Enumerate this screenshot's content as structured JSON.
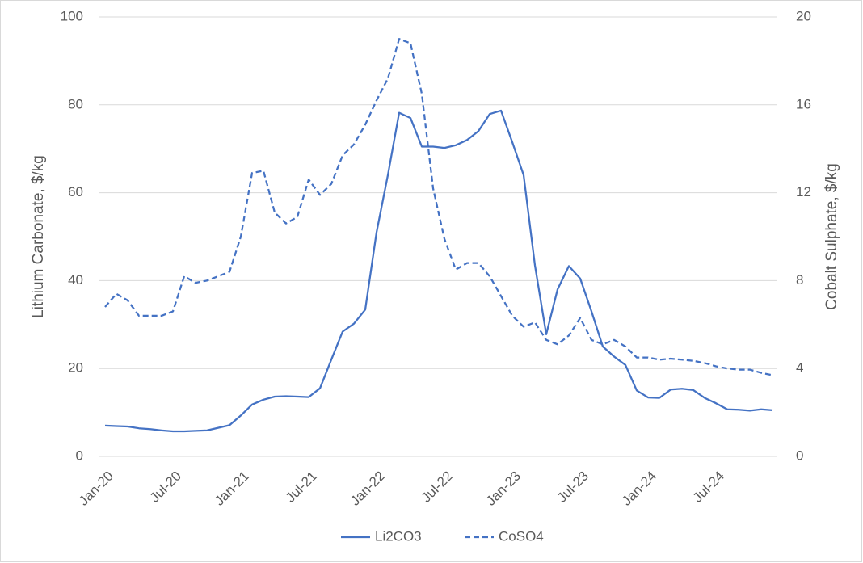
{
  "chart_data": {
    "type": "line",
    "y_label": "Lithium Carbonate, $/kg",
    "y2_label": "Cobalt Sulphate, $/kg",
    "categories": [
      "Jan-20",
      null,
      null,
      null,
      null,
      null,
      "Jul-20",
      null,
      null,
      null,
      null,
      null,
      "Jan-21",
      null,
      null,
      null,
      null,
      null,
      "Jul-21",
      null,
      null,
      null,
      null,
      null,
      "Jan-22",
      null,
      null,
      null,
      null,
      null,
      "Jul-22",
      null,
      null,
      null,
      null,
      null,
      "Jan-23",
      null,
      null,
      null,
      null,
      null,
      "Jul-23",
      null,
      null,
      null,
      null,
      null,
      "Jan-24",
      null,
      null,
      null,
      null,
      null,
      "Jul-24",
      null,
      null,
      null,
      null,
      null
    ],
    "series": [
      {
        "name": "Li2CO3",
        "color": "#4472c4",
        "line_style": "solid",
        "axis": "y",
        "values": [
          7.0,
          6.9,
          6.8,
          6.4,
          6.2,
          5.9,
          5.7,
          5.7,
          5.8,
          5.9,
          6.5,
          7.1,
          9.3,
          11.8,
          12.9,
          13.6,
          13.7,
          13.6,
          13.5,
          15.5,
          22,
          28.4,
          30.2,
          33.4,
          51,
          64,
          78.2,
          77,
          70.5,
          70.5,
          70.2,
          70.8,
          72,
          74,
          77.9,
          78.7,
          71.5,
          64,
          43.5,
          27.8,
          38,
          43.3,
          40.5,
          33,
          25,
          22.7,
          20.8,
          15,
          13.4,
          13.3,
          15.2,
          15.4,
          15.1,
          13.3,
          12.1,
          10.7,
          10.6,
          10.4,
          10.7,
          10.5
        ]
      },
      {
        "name": "CoSO4",
        "color": "#4472c4",
        "line_style": "dashed",
        "axis": "y2",
        "values": [
          6.8,
          7.4,
          7.1,
          6.4,
          6.4,
          6.4,
          6.6,
          8.2,
          7.9,
          8.0,
          8.2,
          8.4,
          10.0,
          12.9,
          13.0,
          11.1,
          10.6,
          10.9,
          12.6,
          11.9,
          12.4,
          13.7,
          14.2,
          15.1,
          16.2,
          17.2,
          19.0,
          18.8,
          16.5,
          12.2,
          9.9,
          8.5,
          8.8,
          8.8,
          8.2,
          7.3,
          6.4,
          5.9,
          6.1,
          5.3,
          5.1,
          5.5,
          6.3,
          5.3,
          5.1,
          5.3,
          5.0,
          4.5,
          4.5,
          4.4,
          4.45,
          4.4,
          4.35,
          4.25,
          4.1,
          4.0,
          3.95,
          3.95,
          3.8,
          3.7
        ]
      }
    ],
    "ylim": [
      0,
      100
    ],
    "yticks": [
      0,
      20,
      40,
      60,
      80,
      100
    ],
    "y2lim": [
      0,
      20
    ],
    "y2ticks": [
      0,
      4,
      8,
      12,
      16,
      20
    ],
    "grid": true,
    "legend": "bottom"
  }
}
